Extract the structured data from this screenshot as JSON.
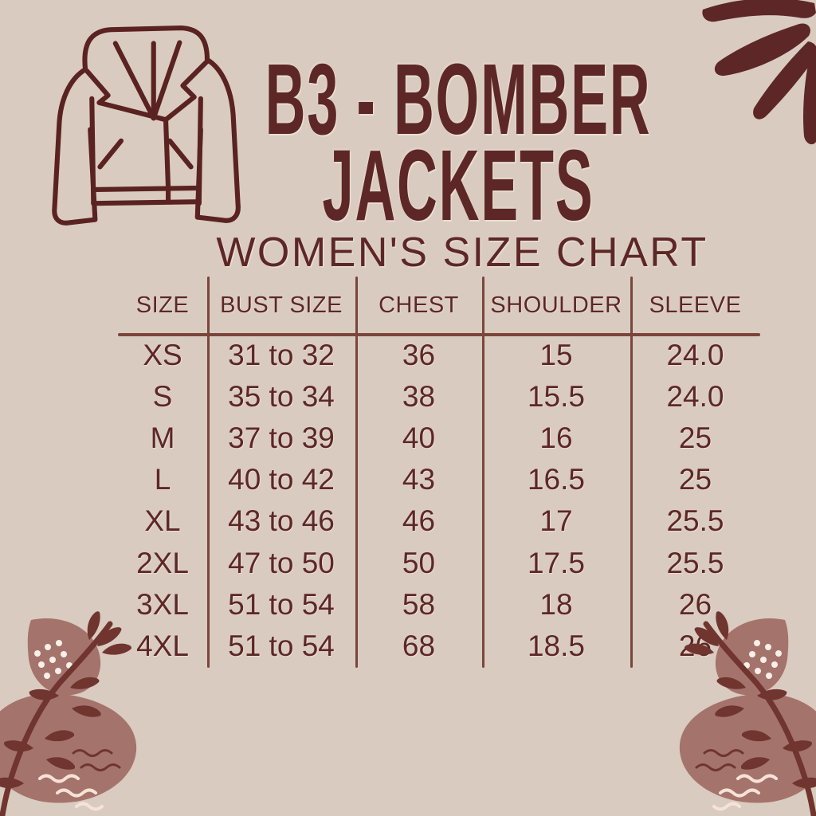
{
  "poster": {
    "title_line1": "B3 - BOMBER",
    "title_line2": "JACKETS",
    "subtitle": "WOMEN'S SIZE CHART"
  },
  "chart_data": {
    "type": "table",
    "title": "B3 - Bomber Jackets Women's Size Chart",
    "columns": [
      "SIZE",
      "BUST SIZE",
      "CHEST",
      "SHOULDER",
      "SLEEVE"
    ],
    "rows": [
      [
        "XS",
        "31 to 32",
        "36",
        "15",
        "24.0"
      ],
      [
        "S",
        "35 to 34",
        "38",
        "15.5",
        "24.0"
      ],
      [
        "M",
        "37 to 39",
        "40",
        "16",
        "25"
      ],
      [
        "L",
        "40 to 42",
        "43",
        "16.5",
        "25"
      ],
      [
        "XL",
        "43 to 46",
        "46",
        "17",
        "25.5"
      ],
      [
        "2XL",
        "47 to 50",
        "50",
        "17.5",
        "25.5"
      ],
      [
        "3XL",
        "51 to 54",
        "58",
        "18",
        "26"
      ],
      [
        "4XL",
        "51 to 54",
        "68",
        "18.5",
        "26"
      ]
    ]
  },
  "icons": {
    "jacket": "jacket-outline-icon",
    "sunburst": "sunburst-icon",
    "botanical_left": "botanical-branch-icon",
    "botanical_right": "botanical-branch-icon-mirrored"
  },
  "colors": {
    "background": "#d9cbc0",
    "text_maroon": "#5e2727",
    "table_line": "#7a453b",
    "blob_mauve": "#a4736b",
    "branch_brown": "#6f352e",
    "sunburst_maroon": "#5d2727",
    "cream_squiggle": "#f7e2d8",
    "dot_white": "#f7efe8"
  }
}
